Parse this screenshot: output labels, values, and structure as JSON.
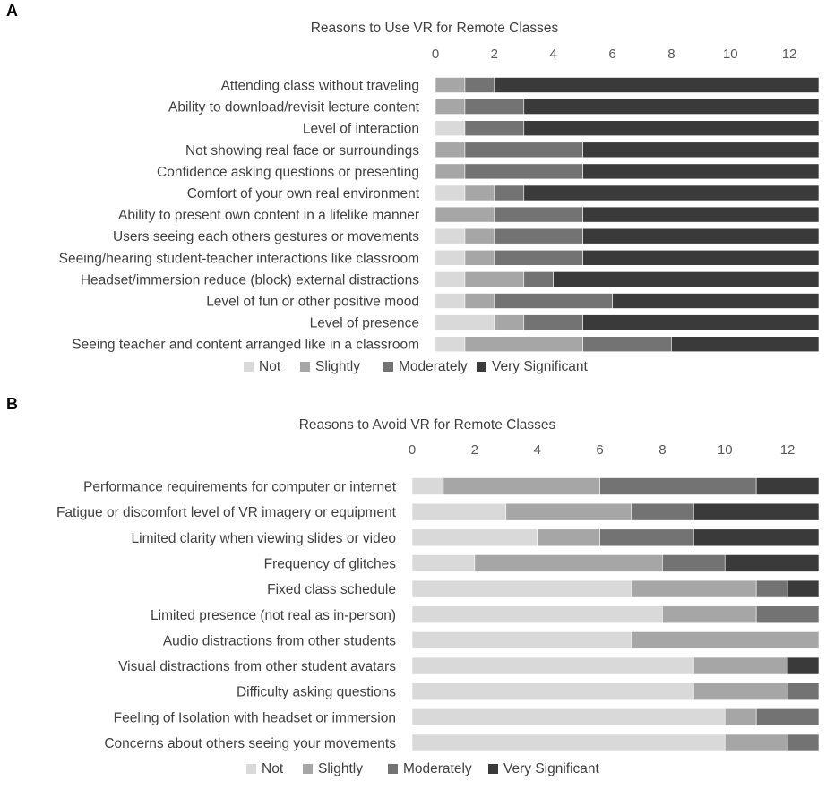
{
  "panel_labels": [
    "A",
    "B"
  ],
  "colors": {
    "Not": "#d9d9d9",
    "Slightly": "#a6a6a6",
    "Moderately": "#737373",
    "Very Significant": "#3a3a3a",
    "axis_text": "#595959",
    "label_text": "#3f3f3f"
  },
  "chart_data": [
    {
      "type": "bar",
      "orientation": "horizontal",
      "stacked": true,
      "title": "Reasons to Use VR for Remote Classes",
      "xlabel": "",
      "ylabel": "",
      "xlim": [
        0,
        13
      ],
      "xticks": [
        0,
        2,
        4,
        6,
        8,
        10,
        12
      ],
      "x_axis_position": "top",
      "legend_position": "bottom-center",
      "grid": false,
      "categories": [
        "Attending class without traveling",
        "Ability to download/revisit lecture content",
        "Level of interaction",
        "Not showing real face or surroundings",
        "Confidence asking questions or presenting",
        "Comfort of your own real environment",
        "Ability to present own content in a lifelike manner",
        "Users seeing each others gestures or movements",
        "Seeing/hearing student-teacher interactions like classroom",
        "Headset/immersion reduce (block) external distractions",
        "Level of fun or other positive mood",
        "Level of presence",
        "Seeing teacher and content arranged like in a classroom"
      ],
      "series": [
        {
          "name": "Not",
          "values": [
            0,
            0,
            1,
            0,
            0,
            1,
            0,
            1,
            1,
            1,
            1,
            2,
            1
          ]
        },
        {
          "name": "Slightly",
          "values": [
            1,
            1,
            0,
            1,
            1,
            1,
            2,
            1,
            1,
            2,
            1,
            1,
            4
          ]
        },
        {
          "name": "Moderately",
          "values": [
            1,
            2,
            2,
            4,
            4,
            1,
            3,
            3,
            3,
            1,
            4,
            2,
            3
          ]
        },
        {
          "name": "Very Significant",
          "values": [
            11,
            10,
            10,
            8,
            8,
            10,
            8,
            8,
            8,
            9,
            7,
            8,
            5
          ]
        }
      ]
    },
    {
      "type": "bar",
      "orientation": "horizontal",
      "stacked": true,
      "title": "Reasons to Avoid VR for Remote Classes",
      "xlabel": "",
      "ylabel": "",
      "xlim": [
        0,
        13
      ],
      "xticks": [
        0,
        2,
        4,
        6,
        8,
        10,
        12
      ],
      "x_axis_position": "top",
      "legend_position": "bottom-center",
      "grid": false,
      "categories": [
        "Performance requirements for computer or internet",
        "Fatigue or discomfort level of VR imagery or equipment",
        "Limited clarity when viewing slides or video",
        "Frequency of glitches",
        "Fixed class schedule",
        "Limited presence (not real as in-person)",
        "Audio distractions from other students",
        "Visual distractions from other student avatars",
        "Difficulty asking questions",
        "Feeling of Isolation with headset or immersion",
        "Concerns about others seeing your movements"
      ],
      "series": [
        {
          "name": "Not",
          "values": [
            1,
            3,
            4,
            2,
            7,
            8,
            7,
            9,
            9,
            10,
            10
          ]
        },
        {
          "name": "Slightly",
          "values": [
            5,
            4,
            2,
            6,
            4,
            3,
            6,
            3,
            3,
            1,
            2
          ]
        },
        {
          "name": "Moderately",
          "values": [
            5,
            2,
            3,
            2,
            1,
            2,
            0,
            0,
            1,
            2,
            1
          ]
        },
        {
          "name": "Very Significant",
          "values": [
            2,
            4,
            4,
            3,
            1,
            0,
            0,
            1,
            0,
            0,
            0
          ]
        }
      ]
    }
  ]
}
